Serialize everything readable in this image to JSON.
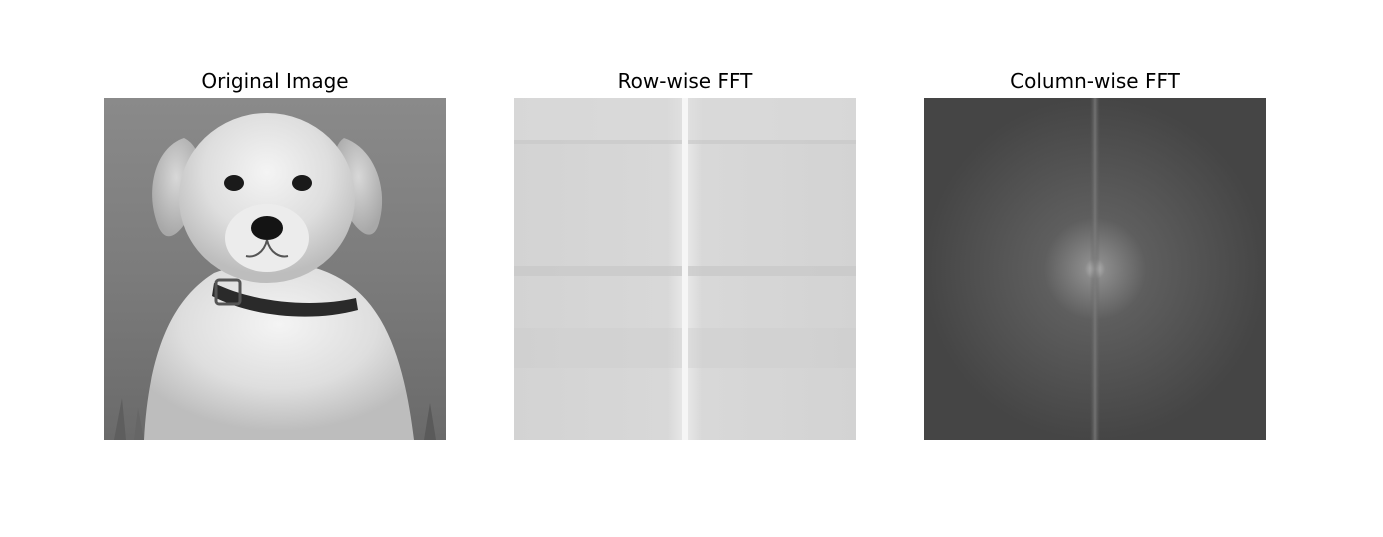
{
  "figure": {
    "panels": [
      {
        "title": "Original Image"
      },
      {
        "title": "Row-wise FFT"
      },
      {
        "title": "Column-wise FFT"
      }
    ]
  }
}
